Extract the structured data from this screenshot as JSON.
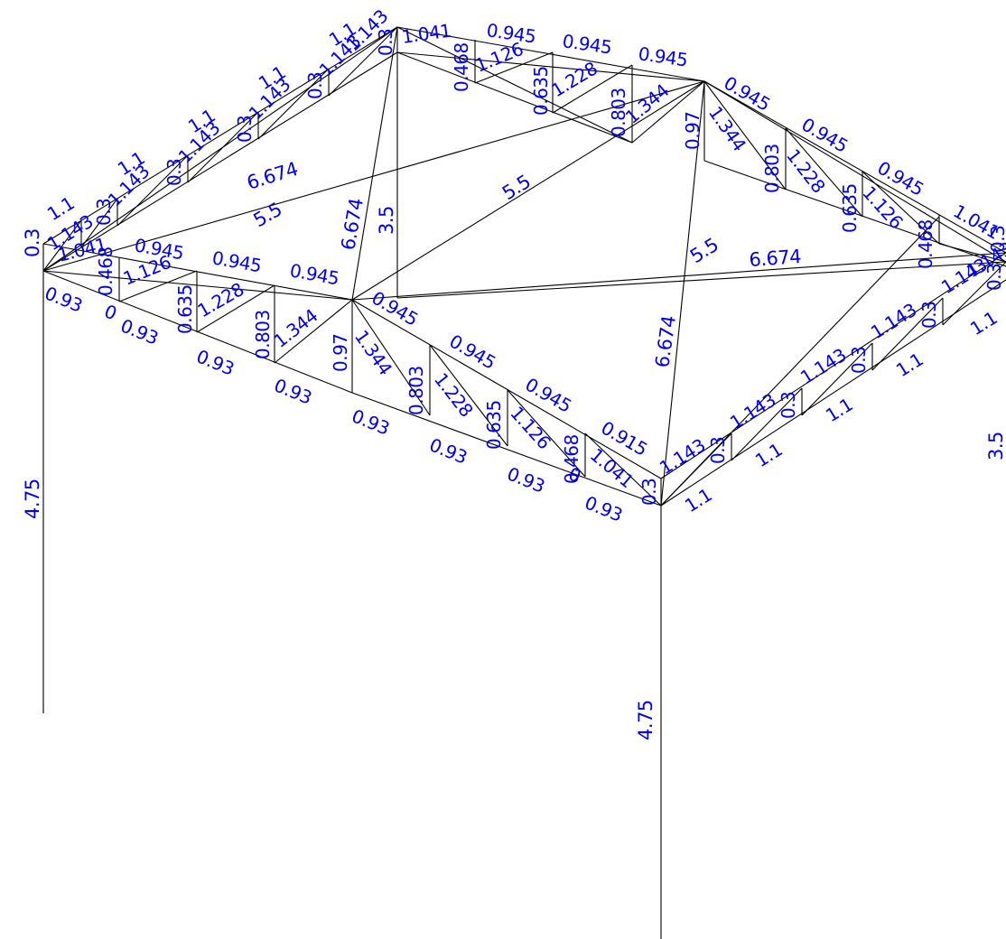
{
  "colors": {
    "background": "#ffffff",
    "member": "#000000",
    "dimension_text": "#0000ee"
  },
  "labels": {
    "column_left_height": "4.75",
    "column_front_height": "4.75",
    "column_right_height": "3.5",
    "left_end_height": "0.3",
    "left_first_panel": "1.041",
    "diag_back_left_a": "6.674",
    "diag_back_left_b": "5.5",
    "diag_center_a": "6.674",
    "diag_center_b": "3.5",
    "diag_center_c": "5.5",
    "diag_front_right_a": "5.5",
    "diag_front_right_b": "6.674",
    "diag_front_a": "6.674",
    "back_top_1": "1.041",
    "back_top_2": "0.945",
    "back_top_3": "0.945",
    "back_top_4": "0.945",
    "back_vert_1": "0.468",
    "back_diag_1": "1.126",
    "back_vert_2": "0.635",
    "back_diag_2": "1.228",
    "back_vert_3": "0.803",
    "back_diag_3": "1.344",
    "right_top_1": "0.945",
    "right_top_2": "0.945",
    "right_top_3": "0.945",
    "right_top_4": "1.041",
    "right_vert_1": "0.97",
    "right_diag_1": "1.344",
    "right_vert_2": "0.803",
    "right_diag_2": "1.228",
    "right_vert_3": "0.635",
    "right_diag_3": "1.126",
    "right_vert_4": "0.468",
    "left_top_1": "1.1",
    "left_top_2": "1.1",
    "left_top_3": "1.1",
    "left_top_4": "1.1",
    "left_top_5": "1.1",
    "left_diag_1": "1.143",
    "left_diag_2": "1.143",
    "left_diag_3": "1.143",
    "left_diag_4": "1.143",
    "left_diag_5": "1.143",
    "left_diag_6": "1.143",
    "left_vert_1": "0.3",
    "left_vert_2": "0.3",
    "left_vert_3": "0.3",
    "left_vert_4": "0.3",
    "left_vert_5": "0.3",
    "front_top_1": "0.945",
    "front_top_2": "0.945",
    "front_top_3": "0.945",
    "front_top_4": "0.945",
    "front_top_5": "0.945",
    "front_top_6": "0.945",
    "front_top_7": "0.915",
    "front_vert_1": "0.468",
    "front_diag_1": "1.126",
    "front_vert_2": "0.635",
    "front_diag_2": "1.228",
    "front_vert_3": "0.803",
    "front_diag_3": "1.344",
    "front_vert_4": "0.97",
    "front_diag_4": "1.344",
    "front_vert_5": "0.803",
    "front_diag_5": "1.228",
    "front_vert_6": "0.635",
    "front_diag_6": "1.126",
    "front_vert_7": "0.468",
    "front_diag_7": "1.041",
    "front_vert_end": "0.3",
    "front_bottom_1": "0.93",
    "front_bottom_2": "0.93",
    "front_bottom_3": "0.93",
    "front_bottom_4": "0.93",
    "front_bottom_5": "0.93",
    "front_bottom_6": "0.93",
    "front_bottom_7": "0.93",
    "front_bottom_8": "0.93",
    "front_bottom_0": "0",
    "front_bottom_0b": "0",
    "right_front_diag_1": "1.143",
    "right_front_diag_2": "1.143",
    "right_front_diag_3": "1.143",
    "right_front_diag_4": "1.143",
    "right_front_diag_5": "1.143",
    "right_front_vert_1": "0.3",
    "right_front_vert_2": "0.3",
    "right_front_vert_3": "0.3",
    "right_front_vert_4": "0.3",
    "right_front_vert_5": "0.3",
    "right_front_bottom_1": "1.1",
    "right_front_bottom_2": "1.1",
    "right_front_bottom_3": "1.1",
    "right_front_bottom_4": "1.1",
    "right_front_bottom_5": "1.1",
    "right_front_bottom_6": "1.1",
    "right_corner_vert": "0.3",
    "right_corner_a": "1.143"
  }
}
